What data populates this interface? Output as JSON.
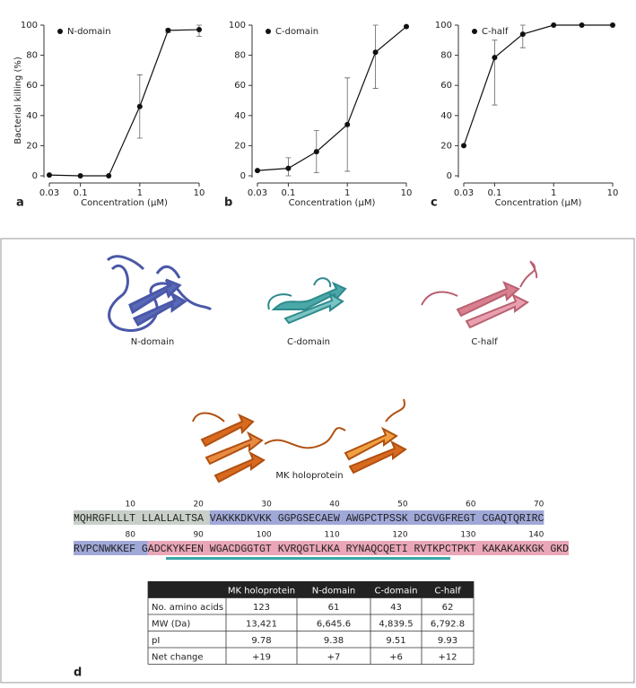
{
  "chart_data": [
    {
      "type": "line",
      "panel": "a",
      "xlabel": "Concentration (μM)",
      "ylabel": "Bacterial killing (%)",
      "log_x": true,
      "x": [
        0.03,
        0.1,
        0.3,
        1,
        3,
        10
      ],
      "series": [
        {
          "name": "N-domain",
          "color": "#111111",
          "values": [
            0.5,
            0,
            0,
            46,
            96.5,
            97
          ],
          "err_minus": [
            null,
            null,
            null,
            21,
            1.5,
            4.5
          ],
          "err_plus": [
            null,
            null,
            null,
            21,
            1,
            3
          ]
        }
      ],
      "xlim": [
        0.03,
        10
      ],
      "xticks": [
        0.03,
        0.1,
        1,
        10
      ],
      "ylim": [
        0,
        100
      ],
      "yticks": [
        0,
        20,
        40,
        60,
        80,
        100
      ]
    },
    {
      "type": "line",
      "panel": "b",
      "xlabel": "Concentration (μM)",
      "log_x": true,
      "x": [
        0.03,
        0.1,
        0.3,
        1,
        3,
        10
      ],
      "series": [
        {
          "name": "C-domain",
          "color": "#111111",
          "values": [
            3.5,
            5,
            16,
            34,
            82,
            99
          ],
          "err_minus": [
            null,
            5,
            14,
            31,
            24,
            null
          ],
          "err_plus": [
            null,
            7,
            14,
            31,
            18,
            null
          ]
        }
      ],
      "xlim": [
        0.03,
        10
      ],
      "xticks": [
        0.03,
        0.1,
        1,
        10
      ],
      "ylim": [
        0,
        100
      ],
      "yticks": [
        0,
        20,
        40,
        60,
        80,
        100
      ]
    },
    {
      "type": "line",
      "panel": "c",
      "xlabel": "Concentration (μM)",
      "log_x": true,
      "x": [
        0.03,
        0.1,
        0.3,
        1,
        3,
        10
      ],
      "series": [
        {
          "name": "C-half",
          "color": "#111111",
          "values": [
            20,
            78.5,
            94,
            100,
            100,
            100
          ],
          "err_minus": [
            null,
            31.5,
            9,
            null,
            null,
            null
          ],
          "err_plus": [
            null,
            11.5,
            6,
            null,
            null,
            null
          ]
        }
      ],
      "xlim": [
        0.03,
        10
      ],
      "xticks": [
        0.03,
        0.1,
        1,
        10
      ],
      "ylim": [
        0,
        100
      ],
      "yticks": [
        0,
        20,
        40,
        60,
        80,
        100
      ]
    }
  ],
  "panel_d": {
    "label": "d",
    "structures": [
      "N-domain",
      "C-domain",
      "C-half",
      "MK holoprotein"
    ],
    "sequence": [
      {
        "numbers": [
          10,
          20,
          30,
          40,
          50,
          60,
          70
        ],
        "segments": [
          {
            "text": "MQHRGFLLLT LLALLALTSA",
            "color": "#c9cfc9"
          },
          {
            "text": "VAKKKDKVKK GGPGSECAEW AWGPCTPSSK DCGVGFREGT CGAQTQRIRC",
            "color": "#a0a8d8"
          }
        ]
      },
      {
        "numbers": [
          80,
          90,
          100,
          110,
          120,
          130,
          140
        ],
        "segments": [
          {
            "text": "RVPCNWKKEF G",
            "color": "#a0a8d8"
          },
          {
            "text": "ADCKYKFEN WGACDGGTGT KVRQGTLKKA RYNAQCQETI RVTKPCTPKT KAKAKAKKGK GKD",
            "color": "#eaa6b8"
          }
        ]
      }
    ],
    "table": {
      "header": [
        "MK holoprotein",
        "N-domain",
        "C-domain",
        "C-half"
      ],
      "rows": [
        [
          "No. amino acids",
          "123",
          "61",
          "43",
          "62"
        ],
        [
          "MW (Da)",
          "13,421",
          "6,645.6",
          "4,839.5",
          "6,792.8"
        ],
        [
          "pI",
          "9.78",
          "9.38",
          "9.51",
          "9.93"
        ],
        [
          "Net change",
          "+19",
          "+7",
          "+6",
          "+12"
        ]
      ]
    }
  }
}
